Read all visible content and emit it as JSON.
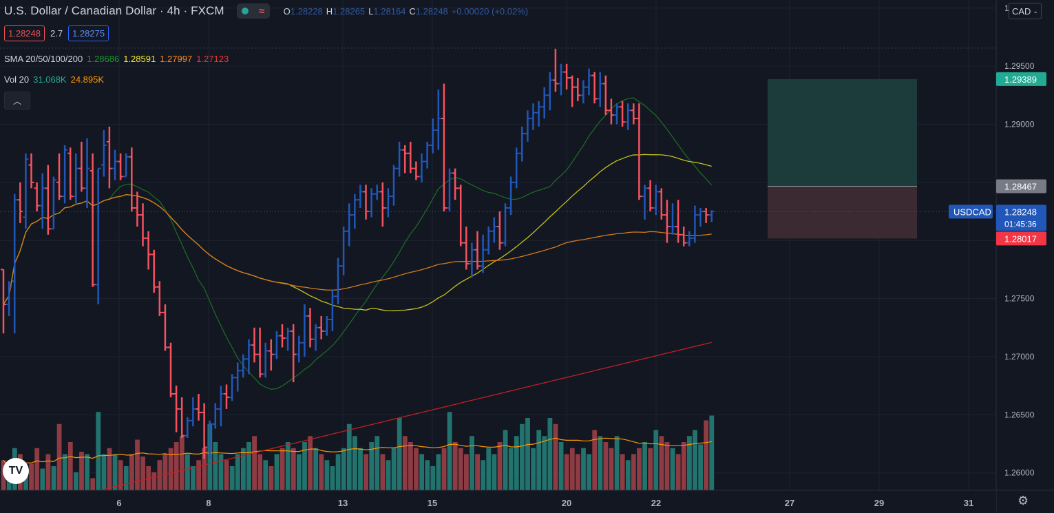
{
  "header": {
    "title": "U.S. Dollar / Canadian Dollar · 4h · FXCM",
    "ohlc": [
      {
        "k": "O",
        "v": "1.28228"
      },
      {
        "k": "H",
        "v": "1.28265"
      },
      {
        "k": "L",
        "v": "1.28164"
      },
      {
        "k": "C",
        "v": "1.28248"
      },
      {
        "k": "",
        "v": "+0.00020 (+0.02%)"
      }
    ]
  },
  "trade": {
    "sell": "1.28248",
    "spread": "2.7",
    "buy": "1.28275"
  },
  "indicators": {
    "sma": {
      "label": "SMA 20/50/100/200",
      "values": [
        {
          "text": "1.28686",
          "color": "#1b9a2d"
        },
        {
          "text": "1.28591",
          "color": "#f5eb2a"
        },
        {
          "text": "1.27997",
          "color": "#ff8a1e"
        },
        {
          "text": "1.27123",
          "color": "#ef3434"
        }
      ]
    },
    "vol": {
      "label": "Vol 20",
      "values": [
        {
          "text": "31.068K",
          "color": "#22ab94"
        },
        {
          "text": "24.895K",
          "color": "#ff9800"
        }
      ]
    }
  },
  "currency": {
    "label": "CAD"
  },
  "colors": {
    "bg": "#131722",
    "up": "#2157b9",
    "down": "#f7525f",
    "volUp": "#22736d",
    "volDown": "#8e3b43",
    "sma20": "#1b6a24",
    "sma50": "#c3c11b",
    "sma100": "#d47a1c",
    "sma200": "#c41f22",
    "volMa": "#ff9800"
  },
  "chart_data": {
    "type": "ohlc-bar",
    "yticks": [
      "1.26000",
      "1.26500",
      "1.27000",
      "1.27500",
      "1.28000",
      "1.28500",
      "1.29000",
      "1.29500",
      "1.30000"
    ],
    "ylim": [
      1.2585,
      1.3007
    ],
    "xticks": [
      "6",
      "8",
      "13",
      "15",
      "20",
      "22",
      "27",
      "29",
      "31"
    ],
    "price_labels": [
      {
        "text": "1.29389",
        "value": 1.29389,
        "color": "#22ab94"
      },
      {
        "text": "1.28467",
        "value": 1.28467,
        "color": "#787b86"
      },
      {
        "text": "1.28017",
        "value": 1.28017,
        "color": "#f23645"
      }
    ],
    "last_price": {
      "symbol": "USDCAD",
      "text": "1.28248",
      "value": 1.28248,
      "countdown": "01:45:36",
      "color": "#2157b9"
    },
    "position": {
      "entry": 1.28467,
      "target": 1.29389,
      "stop": 1.28017
    },
    "dotted_level": 1.29656,
    "bars": [
      [
        1.2775,
        1.2775,
        1.272,
        1.2745
      ],
      [
        1.2745,
        1.2765,
        1.2735,
        1.276
      ],
      [
        1.2765,
        1.284,
        1.272,
        1.2835
      ],
      [
        1.2835,
        1.285,
        1.2815,
        1.2825
      ],
      [
        1.282,
        1.2875,
        1.281,
        1.287
      ],
      [
        1.2865,
        1.2875,
        1.2845,
        1.285
      ],
      [
        1.2845,
        1.285,
        1.2825,
        1.283
      ],
      [
        1.283,
        1.2858,
        1.281,
        1.2845
      ],
      [
        1.2845,
        1.2865,
        1.2805,
        1.281
      ],
      [
        1.281,
        1.2855,
        1.281,
        1.2852
      ],
      [
        1.285,
        1.2875,
        1.2835,
        1.2838
      ],
      [
        1.2838,
        1.2882,
        1.2832,
        1.2878
      ],
      [
        1.2875,
        1.288,
        1.2835,
        1.2838
      ],
      [
        1.2838,
        1.2875,
        1.2832,
        1.2862
      ],
      [
        1.2862,
        1.2885,
        1.2842,
        1.2845
      ],
      [
        1.2845,
        1.2888,
        1.2828,
        1.2862
      ],
      [
        1.286,
        1.2875,
        1.276,
        1.2762
      ],
      [
        1.2762,
        1.2862,
        1.2745,
        1.2862
      ],
      [
        1.2865,
        1.2895,
        1.2855,
        1.2882
      ],
      [
        1.2885,
        1.2898,
        1.2845,
        1.2862
      ],
      [
        1.2862,
        1.2878,
        1.2852,
        1.2868
      ],
      [
        1.2868,
        1.2875,
        1.2852,
        1.2855
      ],
      [
        1.2855,
        1.2875,
        1.2855,
        1.2872
      ],
      [
        1.2872,
        1.288,
        1.2825,
        1.2828
      ],
      [
        1.2828,
        1.2842,
        1.2812,
        1.2822
      ],
      [
        1.2822,
        1.2832,
        1.2795,
        1.2802
      ],
      [
        1.2802,
        1.2808,
        1.2775,
        1.2788
      ],
      [
        1.2788,
        1.2792,
        1.2755,
        1.276
      ],
      [
        1.276,
        1.2765,
        1.2735,
        1.2738
      ],
      [
        1.2738,
        1.2745,
        1.2705,
        1.2708
      ],
      [
        1.2708,
        1.2712,
        1.2665,
        1.2668
      ],
      [
        1.2668,
        1.2675,
        1.2635,
        1.2655
      ],
      [
        1.2655,
        1.2665,
        1.263,
        1.2632
      ],
      [
        1.2632,
        1.2648,
        1.263,
        1.2645
      ],
      [
        1.2645,
        1.2665,
        1.264,
        1.2655
      ],
      [
        1.2655,
        1.2668,
        1.2645,
        1.2652
      ],
      [
        1.2652,
        1.266,
        1.2612,
        1.2622
      ],
      [
        1.2622,
        1.2645,
        1.2612,
        1.2642
      ],
      [
        1.2642,
        1.266,
        1.2638,
        1.2655
      ],
      [
        1.2655,
        1.2675,
        1.264,
        1.2668
      ],
      [
        1.2668,
        1.2676,
        1.2655,
        1.2665
      ],
      [
        1.2665,
        1.2685,
        1.2662,
        1.2682
      ],
      [
        1.2682,
        1.2695,
        1.267,
        1.2688
      ],
      [
        1.2688,
        1.2702,
        1.2682,
        1.2698
      ],
      [
        1.2698,
        1.2715,
        1.2685,
        1.271
      ],
      [
        1.271,
        1.2725,
        1.2695,
        1.2702
      ],
      [
        1.2702,
        1.2725,
        1.2682,
        1.2685
      ],
      [
        1.2685,
        1.2712,
        1.2682,
        1.2705
      ],
      [
        1.2705,
        1.2715,
        1.2688,
        1.2702
      ],
      [
        1.2702,
        1.2722,
        1.2698,
        1.2718
      ],
      [
        1.2718,
        1.2728,
        1.2708,
        1.2716
      ],
      [
        1.2716,
        1.2725,
        1.2705,
        1.2722
      ],
      [
        1.2722,
        1.2728,
        1.2678,
        1.2702
      ],
      [
        1.2702,
        1.2718,
        1.2695,
        1.2712
      ],
      [
        1.2712,
        1.2745,
        1.27,
        1.2735
      ],
      [
        1.2735,
        1.2742,
        1.2708,
        1.2715
      ],
      [
        1.2715,
        1.2728,
        1.2705,
        1.2725
      ],
      [
        1.2725,
        1.2735,
        1.2715,
        1.2722
      ],
      [
        1.2722,
        1.2735,
        1.2718,
        1.2732
      ],
      [
        1.2732,
        1.2758,
        1.2722,
        1.2752
      ],
      [
        1.2752,
        1.2785,
        1.2745,
        1.2778
      ],
      [
        1.2778,
        1.2812,
        1.277,
        1.2808
      ],
      [
        1.2808,
        1.2832,
        1.2795,
        1.2822
      ],
      [
        1.2822,
        1.284,
        1.281,
        1.2835
      ],
      [
        1.2835,
        1.2848,
        1.2828,
        1.2842
      ],
      [
        1.2842,
        1.2848,
        1.2818,
        1.2825
      ],
      [
        1.2825,
        1.2845,
        1.282,
        1.284
      ],
      [
        1.284,
        1.2848,
        1.2835,
        1.2842
      ],
      [
        1.2842,
        1.285,
        1.2812,
        1.2828
      ],
      [
        1.2828,
        1.2845,
        1.282,
        1.2838
      ],
      [
        1.2838,
        1.2865,
        1.283,
        1.2862
      ],
      [
        1.2862,
        1.2885,
        1.2855,
        1.2878
      ],
      [
        1.2878,
        1.2882,
        1.2858,
        1.2875
      ],
      [
        1.2875,
        1.2885,
        1.2858,
        1.2862
      ],
      [
        1.2862,
        1.2868,
        1.2852,
        1.2855
      ],
      [
        1.2855,
        1.2875,
        1.285,
        1.2868
      ],
      [
        1.2868,
        1.2885,
        1.2862,
        1.2882
      ],
      [
        1.2882,
        1.2905,
        1.2875,
        1.2895
      ],
      [
        1.2895,
        1.293,
        1.2878,
        1.2905
      ],
      [
        1.2905,
        1.2935,
        1.2825,
        1.2828
      ],
      [
        1.2828,
        1.2862,
        1.2825,
        1.2858
      ],
      [
        1.2858,
        1.2862,
        1.2835,
        1.2845
      ],
      [
        1.2845,
        1.2848,
        1.2795,
        1.2798
      ],
      [
        1.2798,
        1.2812,
        1.2775,
        1.278
      ],
      [
        1.278,
        1.2798,
        1.2768,
        1.2792
      ],
      [
        1.2792,
        1.2808,
        1.2775,
        1.2778
      ],
      [
        1.2778,
        1.2805,
        1.2772,
        1.2792
      ],
      [
        1.2792,
        1.2812,
        1.2788,
        1.2808
      ],
      [
        1.2808,
        1.282,
        1.2798,
        1.2812
      ],
      [
        1.2812,
        1.2825,
        1.2792,
        1.2798
      ],
      [
        1.2798,
        1.2832,
        1.2795,
        1.2828
      ],
      [
        1.2828,
        1.2855,
        1.2822,
        1.285
      ],
      [
        1.285,
        1.288,
        1.2845,
        1.2875
      ],
      [
        1.2875,
        1.2898,
        1.2868,
        1.2892
      ],
      [
        1.2892,
        1.2912,
        1.2885,
        1.2905
      ],
      [
        1.2905,
        1.2918,
        1.2895,
        1.291
      ],
      [
        1.291,
        1.292,
        1.2898,
        1.2915
      ],
      [
        1.2915,
        1.2932,
        1.2905,
        1.2925
      ],
      [
        1.2925,
        1.2945,
        1.2912,
        1.2938
      ],
      [
        1.2938,
        1.2965,
        1.2928,
        1.2935
      ],
      [
        1.2935,
        1.2952,
        1.2925,
        1.2945
      ],
      [
        1.2945,
        1.2952,
        1.293,
        1.294
      ],
      [
        1.294,
        1.2942,
        1.2915,
        1.2932
      ],
      [
        1.2932,
        1.294,
        1.292,
        1.2925
      ],
      [
        1.2925,
        1.2938,
        1.2918,
        1.2932
      ],
      [
        1.2932,
        1.2948,
        1.2925,
        1.2942
      ],
      [
        1.2942,
        1.2945,
        1.2918,
        1.2922
      ],
      [
        1.2922,
        1.2945,
        1.2915,
        1.2935
      ],
      [
        1.2935,
        1.2942,
        1.2908,
        1.2912
      ],
      [
        1.2912,
        1.2922,
        1.29,
        1.2908
      ],
      [
        1.2908,
        1.2918,
        1.29,
        1.2915
      ],
      [
        1.2915,
        1.292,
        1.2898,
        1.2902
      ],
      [
        1.2902,
        1.2918,
        1.2895,
        1.2912
      ],
      [
        1.2912,
        1.2918,
        1.29,
        1.2905
      ],
      [
        1.2905,
        1.2918,
        1.2835,
        1.2838
      ],
      [
        1.2838,
        1.2848,
        1.2818,
        1.2845
      ],
      [
        1.2845,
        1.2852,
        1.2825,
        1.2828
      ],
      [
        1.2828,
        1.2848,
        1.2822,
        1.2842
      ],
      [
        1.2842,
        1.2845,
        1.2818,
        1.2822
      ],
      [
        1.2822,
        1.2835,
        1.2798,
        1.2812
      ],
      [
        1.2812,
        1.2832,
        1.2805,
        1.2812
      ],
      [
        1.2812,
        1.2835,
        1.2798,
        1.2805
      ],
      [
        1.2805,
        1.2812,
        1.2795,
        1.2798
      ],
      [
        1.2798,
        1.2808,
        1.2795,
        1.2802
      ],
      [
        1.2802,
        1.283,
        1.2798,
        1.2822
      ],
      [
        1.2822,
        1.2828,
        1.2812,
        1.2825
      ],
      [
        1.2825,
        1.2828,
        1.2815,
        1.2822
      ],
      [
        1.2822,
        1.2826,
        1.2816,
        1.2825
      ]
    ],
    "bar_x_start": 5,
    "bar_spacing": 8.1,
    "volumes": [
      0.25,
      0.12,
      0.35,
      0.3,
      0.12,
      0.22,
      0.35,
      0.18,
      0.3,
      0.2,
      0.55,
      0.3,
      0.4,
      0.15,
      0.32,
      0.3,
      0.1,
      0.65,
      0.3,
      0.35,
      0.3,
      0.25,
      0.2,
      0.3,
      0.42,
      0.28,
      0.2,
      0.15,
      0.25,
      0.3,
      0.35,
      0.4,
      0.45,
      0.3,
      0.2,
      0.25,
      0.35,
      0.55,
      0.4,
      0.3,
      0.25,
      0.2,
      0.3,
      0.35,
      0.4,
      0.45,
      0.3,
      0.25,
      0.2,
      0.3,
      0.35,
      0.4,
      0.35,
      0.3,
      0.4,
      0.45,
      0.35,
      0.3,
      0.25,
      0.2,
      0.3,
      0.35,
      0.55,
      0.45,
      0.35,
      0.3,
      0.4,
      0.45,
      0.3,
      0.25,
      0.35,
      0.6,
      0.45,
      0.4,
      0.35,
      0.3,
      0.25,
      0.2,
      0.3,
      0.35,
      0.65,
      0.4,
      0.35,
      0.3,
      0.45,
      0.3,
      0.25,
      0.35,
      0.3,
      0.4,
      0.5,
      0.35,
      0.45,
      0.55,
      0.6,
      0.35,
      0.5,
      0.45,
      0.6,
      0.55,
      0.4,
      0.3,
      0.35,
      0.3,
      0.35,
      0.3,
      0.5,
      0.45,
      0.4,
      0.35,
      0.45,
      0.3,
      0.25,
      0.3,
      0.35,
      0.4,
      0.35,
      0.5,
      0.45,
      0.4,
      0.35,
      0.3,
      0.4,
      0.45,
      0.5,
      0.38,
      0.58,
      0.62,
      0.46
    ]
  }
}
